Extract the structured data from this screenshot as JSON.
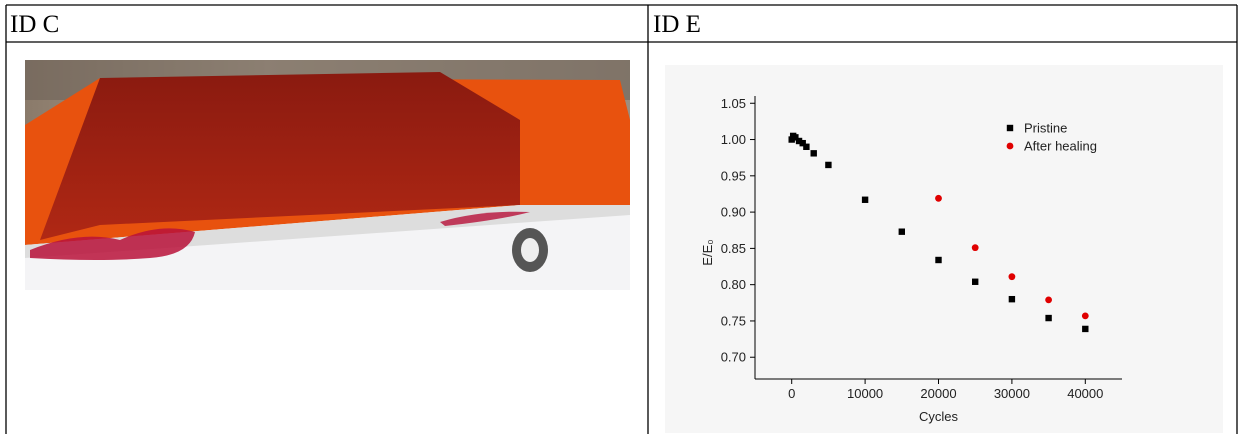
{
  "table": {
    "headers": [
      "ID C",
      "ID E"
    ]
  },
  "chart_data": {
    "type": "scatter",
    "x_label": "Cycles",
    "y_label": "E/E₀",
    "xlim": [
      -5000,
      45000
    ],
    "ylim": [
      0.67,
      1.06
    ],
    "xticks": [
      0,
      10000,
      20000,
      30000,
      40000
    ],
    "yticks": [
      {
        "value": 0.7,
        "label": "0.70"
      },
      0.75,
      {
        "value": 0.8,
        "label": "0.80"
      },
      0.85,
      {
        "value": 0.9,
        "label": "0.90"
      },
      0.95,
      {
        "value": 1.0,
        "label": "1.00"
      },
      1.05
    ],
    "legend": "upper right",
    "series": [
      {
        "name": "Pristine",
        "color": "#000000",
        "marker": "square",
        "x": [
          0,
          200,
          500,
          1000,
          1500,
          2000,
          3000,
          5000,
          10000,
          15000,
          20000,
          25000,
          30000,
          35000,
          40000
        ],
        "values": [
          1.0,
          1.005,
          1.003,
          0.998,
          0.995,
          0.99,
          0.981,
          0.965,
          0.917,
          0.873,
          0.834,
          0.804,
          0.78,
          0.754,
          0.739
        ]
      },
      {
        "name": "After healing",
        "color": "#e00000",
        "marker": "circle",
        "x": [
          20000,
          25000,
          30000,
          35000,
          40000
        ],
        "values": [
          0.919,
          0.851,
          0.811,
          0.779,
          0.757
        ]
      }
    ]
  }
}
